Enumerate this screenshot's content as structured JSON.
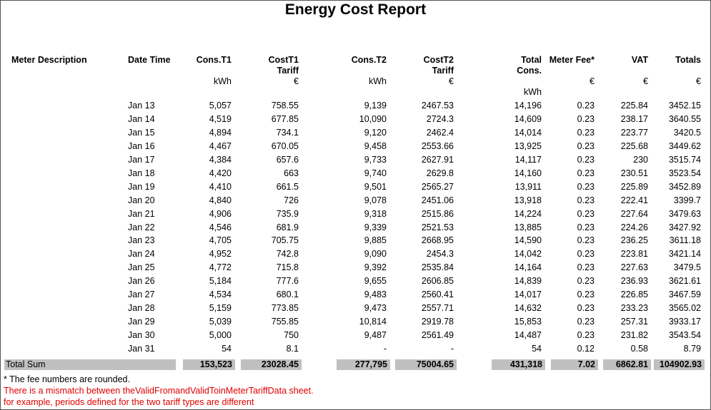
{
  "title": "Energy Cost Report",
  "header": [
    "Meter Description",
    "Date Time",
    "Cons.T1",
    "CostT1 Tariff",
    "Cons.T2",
    "CostT2 Tariff",
    "Total Cons.",
    "Meter Fee*",
    "VAT",
    "Totals"
  ],
  "units": [
    "kWh",
    "€",
    "kWh",
    "€",
    "kWh",
    "€",
    "€",
    "€"
  ],
  "rows": [
    [
      "Jan 13",
      "5,057",
      "758.55",
      "9,139",
      "2467.53",
      "14,196",
      "0.23",
      "225.84",
      "3452.15"
    ],
    [
      "Jan 14",
      "4,519",
      "677.85",
      "10,090",
      "2724.3",
      "14,609",
      "0.23",
      "238.17",
      "3640.55"
    ],
    [
      "Jan 15",
      "4,894",
      "734.1",
      "9,120",
      "2462.4",
      "14,014",
      "0.23",
      "223.77",
      "3420.5"
    ],
    [
      "Jan 16",
      "4,467",
      "670.05",
      "9,458",
      "2553.66",
      "13,925",
      "0.23",
      "225.68",
      "3449.62"
    ],
    [
      "Jan 17",
      "4,384",
      "657.6",
      "9,733",
      "2627.91",
      "14,117",
      "0.23",
      "230",
      "3515.74"
    ],
    [
      "Jan 18",
      "4,420",
      "663",
      "9,740",
      "2629.8",
      "14,160",
      "0.23",
      "230.51",
      "3523.54"
    ],
    [
      "Jan 19",
      "4,410",
      "661.5",
      "9,501",
      "2565.27",
      "13,911",
      "0.23",
      "225.89",
      "3452.89"
    ],
    [
      "Jan 20",
      "4,840",
      "726",
      "9,078",
      "2451.06",
      "13,918",
      "0.23",
      "222.41",
      "3399.7"
    ],
    [
      "Jan 21",
      "4,906",
      "735.9",
      "9,318",
      "2515.86",
      "14,224",
      "0.23",
      "227.64",
      "3479.63"
    ],
    [
      "Jan 22",
      "4,546",
      "681.9",
      "9,339",
      "2521.53",
      "13,885",
      "0.23",
      "224.26",
      "3427.92"
    ],
    [
      "Jan 23",
      "4,705",
      "705.75",
      "9,885",
      "2668.95",
      "14,590",
      "0.23",
      "236.25",
      "3611.18"
    ],
    [
      "Jan 24",
      "4,952",
      "742.8",
      "9,090",
      "2454.3",
      "14,042",
      "0.23",
      "223.81",
      "3421.14"
    ],
    [
      "Jan 25",
      "4,772",
      "715.8",
      "9,392",
      "2535.84",
      "14,164",
      "0.23",
      "227.63",
      "3479.5"
    ],
    [
      "Jan 26",
      "5,184",
      "777.6",
      "9,655",
      "2606.85",
      "14,839",
      "0.23",
      "236.93",
      "3621.61"
    ],
    [
      "Jan 27",
      "4,534",
      "680.1",
      "9,483",
      "2560.41",
      "14,017",
      "0.23",
      "226.85",
      "3467.59"
    ],
    [
      "Jan 28",
      "5,159",
      "773.85",
      "9,473",
      "2557.71",
      "14,632",
      "0.23",
      "233.23",
      "3565.02"
    ],
    [
      "Jan 29",
      "5,039",
      "755.85",
      "10,814",
      "2919.78",
      "15,853",
      "0.23",
      "257.31",
      "3933.17"
    ],
    [
      "Jan 30",
      "5,000",
      "750",
      "9,487",
      "2561.49",
      "14,487",
      "0.23",
      "231.82",
      "3543.54"
    ],
    [
      "Jan 31",
      "54",
      "8.1",
      "-",
      "-",
      "54",
      "0.12",
      "0.58",
      "8.79"
    ]
  ],
  "total": {
    "label": "Total Sum",
    "values": [
      "153,523",
      "23028.45",
      "277,795",
      "75004.65",
      "431,318",
      "7.02",
      "6862.81",
      "104902.93"
    ]
  },
  "notes": [
    "* The fee numbers are rounded.",
    "There is a mismatch between theValidFromandValidToinMeterTariffData sheet.",
    "for example, periods defined for the two tariff types are different"
  ]
}
